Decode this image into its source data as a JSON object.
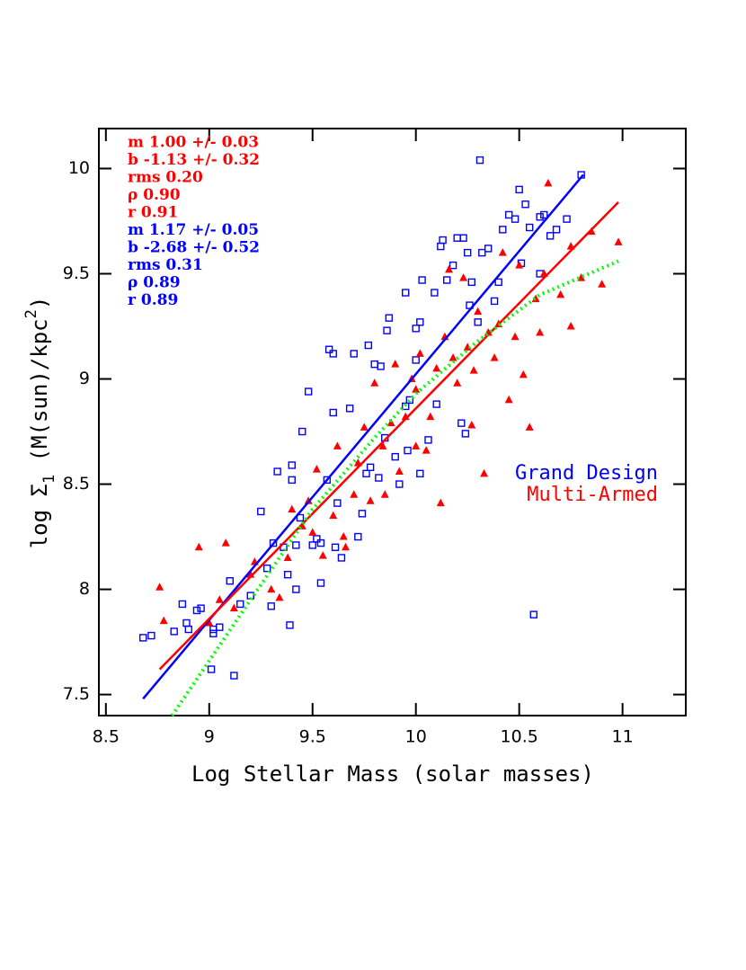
{
  "chart_data": {
    "type": "scatter",
    "x_label": "Log Stellar Mass (solar masses)",
    "y_label": [
      "log Σ",
      "1",
      " (M(sun)/kpc",
      "2",
      ")"
    ],
    "xlim": [
      8.466,
      11.306
    ],
    "ylim": [
      7.4,
      10.19
    ],
    "xticks": [
      8.5,
      9,
      9.5,
      10,
      10.5,
      11
    ],
    "yticks": [
      7.5,
      8,
      8.5,
      9,
      9.5,
      10
    ],
    "annotations": [
      {
        "text": "m 1.00 +/- 0.03",
        "color": "#ff0000"
      },
      {
        "text": "b -1.13 +/- 0.32",
        "color": "#ff0000"
      },
      {
        "text": "rms 0.20",
        "color": "#ff0000"
      },
      {
        "text": "ρ 0.90",
        "color": "#ff0000"
      },
      {
        "text": "r 0.91",
        "color": "#ff0000"
      },
      {
        "text": "m 1.17 +/- 0.05",
        "color": "#0000ff"
      },
      {
        "text": "b -2.68 +/- 0.52",
        "color": "#0000ff"
      },
      {
        "text": "rms 0.31",
        "color": "#0000ff"
      },
      {
        "text": "ρ 0.89",
        "color": "#0000ff"
      },
      {
        "text": "r 0.89",
        "color": "#0000ff"
      }
    ],
    "series": [
      {
        "name": "Grand Design",
        "color": "#0000ff",
        "kind": "scatter",
        "marker": "square",
        "x": [
          8.68,
          8.72,
          8.83,
          8.87,
          8.89,
          8.9,
          8.94,
          8.96,
          9.01,
          9.02,
          9.02,
          9.05,
          9.1,
          9.12,
          9.15,
          9.2,
          9.25,
          9.28,
          9.3,
          9.31,
          9.33,
          9.36,
          9.38,
          9.39,
          9.4,
          9.4,
          9.42,
          9.44,
          9.45,
          9.5,
          9.52,
          9.54,
          9.54,
          9.57,
          9.58,
          9.6,
          9.6,
          9.61,
          9.62,
          9.64,
          9.68,
          9.7,
          9.72,
          9.74,
          9.76,
          9.77,
          9.78,
          9.8,
          9.82,
          9.83,
          9.85,
          9.86,
          9.87,
          9.9,
          9.92,
          9.95,
          9.96,
          9.97,
          10,
          10.02,
          10.02,
          10.03,
          10.06,
          10.09,
          10.1,
          10.12,
          10.13,
          10.15,
          10.18,
          10.2,
          10.22,
          10.23,
          10.25,
          10.26,
          10.27,
          10.3,
          10.31,
          10.32,
          10.35,
          10.38,
          10.42,
          10.45,
          10.48,
          10.5,
          10.51,
          10.53,
          10.55,
          10.57,
          10.6,
          10.62,
          10.65,
          10.68,
          10.73,
          10.8,
          10.24,
          10,
          9.48,
          9.95,
          10.4,
          10.6,
          9.42
        ],
        "values": [
          7.77,
          7.78,
          7.8,
          7.93,
          7.84,
          7.81,
          7.9,
          7.91,
          7.62,
          7.79,
          7.81,
          7.82,
          8.04,
          7.59,
          7.93,
          7.97,
          8.37,
          8.1,
          7.92,
          8.22,
          8.56,
          8.2,
          8.07,
          7.83,
          8.59,
          8.52,
          8.21,
          8.34,
          8.75,
          8.21,
          8.24,
          8.03,
          8.22,
          8.52,
          9.14,
          8.84,
          9.12,
          8.2,
          8.41,
          8.15,
          8.86,
          9.12,
          8.25,
          8.36,
          8.55,
          9.16,
          8.58,
          9.07,
          8.53,
          9.06,
          8.72,
          9.23,
          9.29,
          8.63,
          8.5,
          9.41,
          8.66,
          8.9,
          9.24,
          8.55,
          9.27,
          9.47,
          8.71,
          9.41,
          8.88,
          9.63,
          9.66,
          9.47,
          9.54,
          9.67,
          8.79,
          9.67,
          9.6,
          9.35,
          9.46,
          9.27,
          10.04,
          9.6,
          9.62,
          9.37,
          9.71,
          9.78,
          9.76,
          9.9,
          9.55,
          9.83,
          9.72,
          7.88,
          9.77,
          9.78,
          9.68,
          9.71,
          9.76,
          9.97,
          8.74,
          9.09,
          8.94,
          8.87,
          9.46,
          9.5,
          8.0
        ]
      },
      {
        "name": "Multi-Armed",
        "color": "#ff0000",
        "kind": "scatter",
        "marker": "triangle",
        "x": [
          8.76,
          8.78,
          8.95,
          9,
          9.05,
          9.08,
          9.12,
          9.2,
          9.22,
          9.3,
          9.34,
          9.38,
          9.45,
          9.48,
          9.5,
          9.52,
          9.55,
          9.6,
          9.62,
          9.66,
          9.7,
          9.72,
          9.75,
          9.78,
          9.8,
          9.84,
          9.88,
          9.9,
          9.92,
          9.95,
          9.98,
          10,
          10.02,
          10.05,
          10.07,
          10.1,
          10.12,
          10.14,
          10.16,
          10.18,
          10.2,
          10.23,
          10.25,
          10.28,
          10.3,
          10.33,
          10.35,
          10.38,
          10.4,
          10.42,
          10.45,
          10.48,
          10.5,
          10.52,
          10.55,
          10.58,
          10.62,
          10.64,
          10.7,
          10.75,
          10.8,
          10.85,
          10.9,
          10.98,
          10.6,
          10.75,
          10,
          9.85,
          9.65,
          9.4,
          10.27
        ],
        "values": [
          8.01,
          7.85,
          8.2,
          7.84,
          7.95,
          8.22,
          7.91,
          8.07,
          8.13,
          8,
          7.96,
          8.15,
          8.3,
          8.42,
          8.27,
          8.57,
          8.16,
          8.35,
          8.68,
          8.2,
          8.45,
          8.6,
          8.77,
          8.42,
          8.98,
          8.68,
          8.79,
          9.07,
          8.56,
          8.82,
          9,
          8.95,
          9.12,
          8.66,
          8.82,
          9.05,
          8.41,
          9.2,
          9.52,
          9.1,
          8.98,
          9.48,
          9.15,
          9.04,
          9.32,
          8.55,
          9.22,
          9.1,
          9.26,
          9.6,
          8.9,
          9.2,
          9.54,
          9.02,
          8.77,
          9.38,
          9.5,
          9.93,
          9.4,
          9.63,
          9.48,
          9.7,
          9.45,
          9.65,
          9.22,
          9.25,
          8.68,
          8.45,
          8.25,
          8.38,
          8.78
        ]
      },
      {
        "color": "#0000ff",
        "kind": "line",
        "dash": false,
        "x": [
          8.68,
          10.81
        ],
        "values": [
          7.48,
          9.97
        ]
      },
      {
        "color": "#ff0000",
        "kind": "line",
        "dash": false,
        "x": [
          8.76,
          10.98
        ],
        "values": [
          7.62,
          9.84
        ]
      },
      {
        "color": "#00ff00",
        "kind": "line",
        "dash": true,
        "x": [
          8.82,
          9.2,
          9.5,
          9.8,
          10,
          10.3,
          10.6,
          10.98
        ],
        "values": [
          7.4,
          7.95,
          8.38,
          8.72,
          8.93,
          9.18,
          9.4,
          9.56
        ]
      }
    ]
  }
}
